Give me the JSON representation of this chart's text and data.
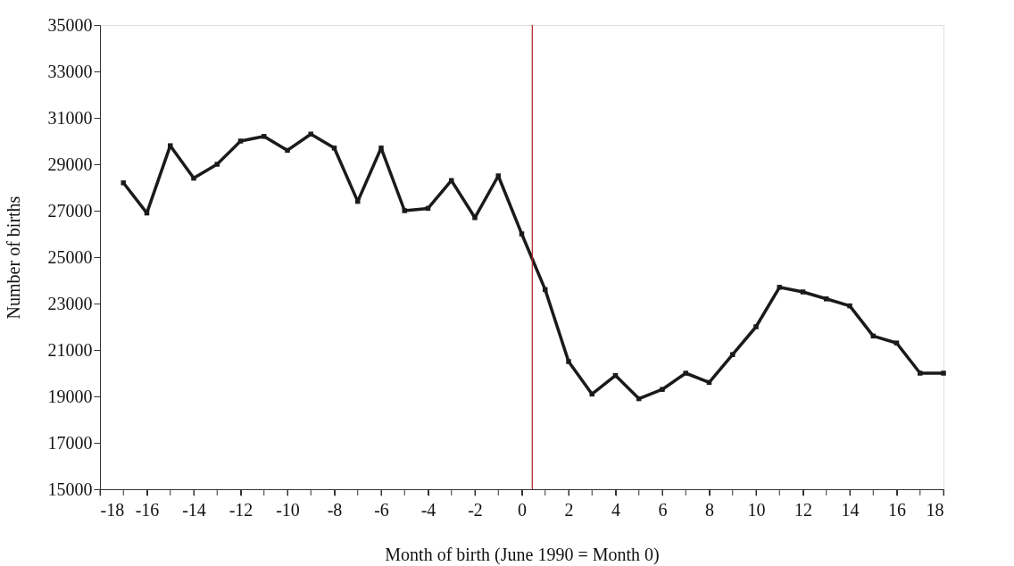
{
  "chart_data": {
    "type": "line",
    "xlabel": "Month of birth (June 1990 = Month 0)",
    "ylabel": "Number of births",
    "x": [
      -17,
      -16,
      -15,
      -14,
      -13,
      -12,
      -11,
      -10,
      -9,
      -8,
      -7,
      -6,
      -5,
      -4,
      -3,
      -2,
      -1,
      0,
      1,
      2,
      3,
      4,
      5,
      6,
      7,
      8,
      9,
      10,
      11,
      12,
      13,
      14,
      15,
      16,
      17,
      18
    ],
    "series": [
      {
        "color": "#1a1a1a",
        "values": [
          28200,
          26900,
          29800,
          28400,
          29000,
          30000,
          30200,
          29600,
          30300,
          29700,
          27400,
          29700,
          27000,
          27100,
          28300,
          26700,
          28500,
          26000,
          23600,
          20500,
          19100,
          19900,
          18900,
          19300,
          20000,
          19600,
          20800,
          22000,
          23700,
          23500,
          23200,
          22900,
          21600,
          21300,
          20000,
          20000
        ]
      }
    ],
    "xlim": [
      -18,
      18
    ],
    "xticks": [
      -18,
      {
        "value": -17,
        "label": null
      },
      -16,
      {
        "value": -15,
        "label": null
      },
      -14,
      {
        "value": -13,
        "label": null
      },
      -12,
      {
        "value": -11,
        "label": null
      },
      -10,
      {
        "value": -9,
        "label": null
      },
      -8,
      {
        "value": -7,
        "label": null
      },
      -6,
      {
        "value": -5,
        "label": null
      },
      -4,
      {
        "value": -3,
        "label": null
      },
      -2,
      {
        "value": -1,
        "label": null
      },
      0,
      {
        "value": 1,
        "label": null
      },
      2,
      {
        "value": 3,
        "label": null
      },
      4,
      {
        "value": 5,
        "label": null
      },
      6,
      {
        "value": 7,
        "label": null
      },
      8,
      {
        "value": 9,
        "label": null
      },
      10,
      {
        "value": 11,
        "label": null
      },
      12,
      {
        "value": 13,
        "label": null
      },
      14,
      {
        "value": 15,
        "label": null
      },
      16,
      {
        "value": 17,
        "label": null
      },
      18
    ],
    "ylim": [
      15000,
      35000
    ],
    "yticks": [
      15000,
      17000,
      19000,
      21000,
      23000,
      25000,
      27000,
      29000,
      31000,
      33000,
      35000
    ],
    "ref_lines": [
      {
        "axis": "x",
        "value": 0.45,
        "color": "#b22222"
      }
    ],
    "grid": false,
    "marker": "square",
    "line_style": "solid"
  }
}
